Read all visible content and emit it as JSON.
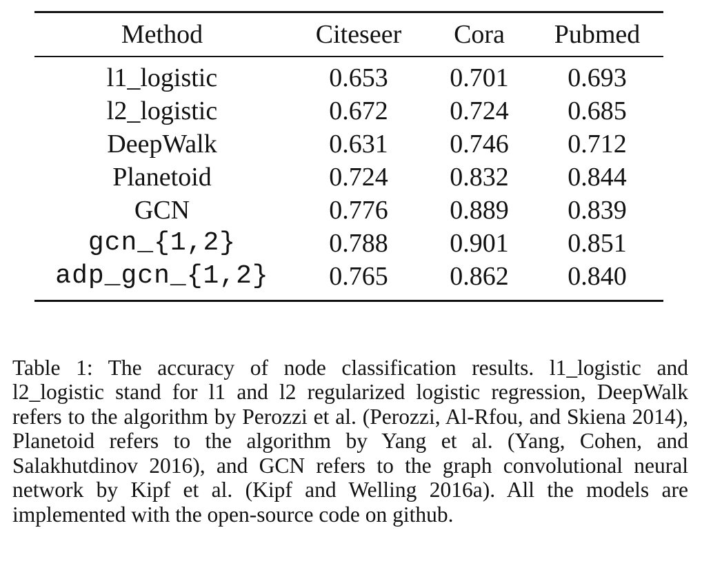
{
  "table": {
    "headers": [
      "Method",
      "Citeseer",
      "Cora",
      "Pubmed"
    ],
    "rows": [
      {
        "method": "l1_logistic",
        "citeseer": "0.653",
        "cora": "0.701",
        "pubmed": "0.693"
      },
      {
        "method": "l2_logistic",
        "citeseer": "0.672",
        "cora": "0.724",
        "pubmed": "0.685"
      },
      {
        "method": "DeepWalk",
        "citeseer": "0.631",
        "cora": "0.746",
        "pubmed": "0.712"
      },
      {
        "method": "Planetoid",
        "citeseer": "0.724",
        "cora": "0.832",
        "pubmed": "0.844"
      },
      {
        "method": "GCN",
        "citeseer": "0.776",
        "cora": "0.889",
        "pubmed": "0.839"
      },
      {
        "method": "gcn_{1,2}",
        "citeseer": "0.788",
        "cora": "0.901",
        "pubmed": "0.851"
      },
      {
        "method": "adp_gcn_{1,2}",
        "citeseer": "0.765",
        "cora": "0.862",
        "pubmed": "0.840"
      }
    ]
  },
  "caption": {
    "label": "Table 1:",
    "text": "The accuracy of node classification results. l1_logistic and l2_logistic stand for l1 and l2 regularized logistic regression, DeepWalk refers to the algorithm by Perozzi et al. (Perozzi, Al-Rfou, and Skiena 2014), Planetoid refers to the algorithm by Yang et al. (Yang, Cohen, and Salakhutdinov 2016), and GCN refers to the graph convolutional neural network by Kipf et al. (Kipf and Welling 2016a). All the models are implemented with the open-source code on github."
  }
}
